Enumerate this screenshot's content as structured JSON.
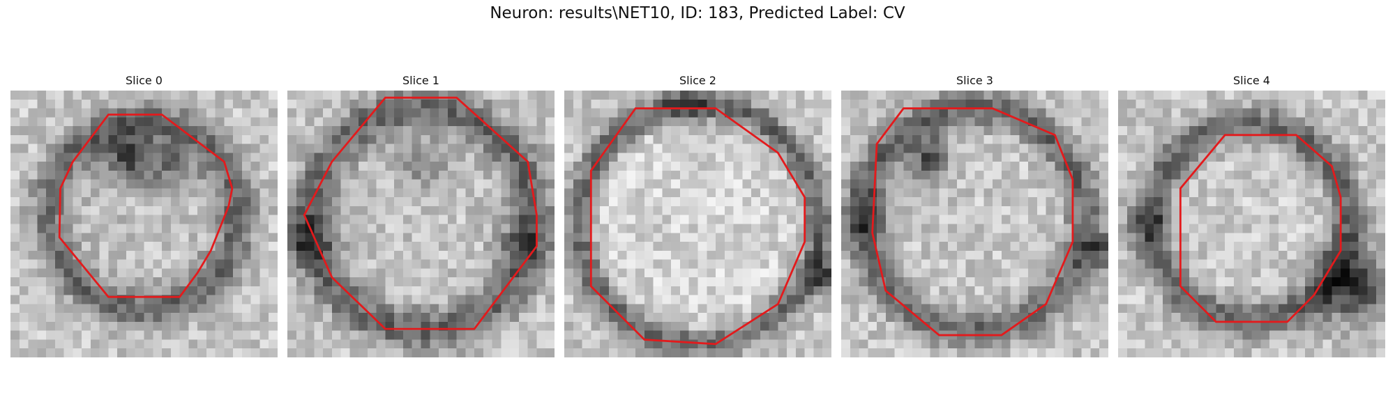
{
  "figure": {
    "title": "Neuron: results\\NET10, ID: 183, Predicted Label: CV"
  },
  "panels": [
    {
      "title": "Slice 0"
    },
    {
      "title": "Slice 1"
    },
    {
      "title": "Slice 2"
    },
    {
      "title": "Slice 3"
    },
    {
      "title": "Slice 4"
    }
  ],
  "colors": {
    "contour": "#e31a1c",
    "image_colormap": "grayscale"
  }
}
